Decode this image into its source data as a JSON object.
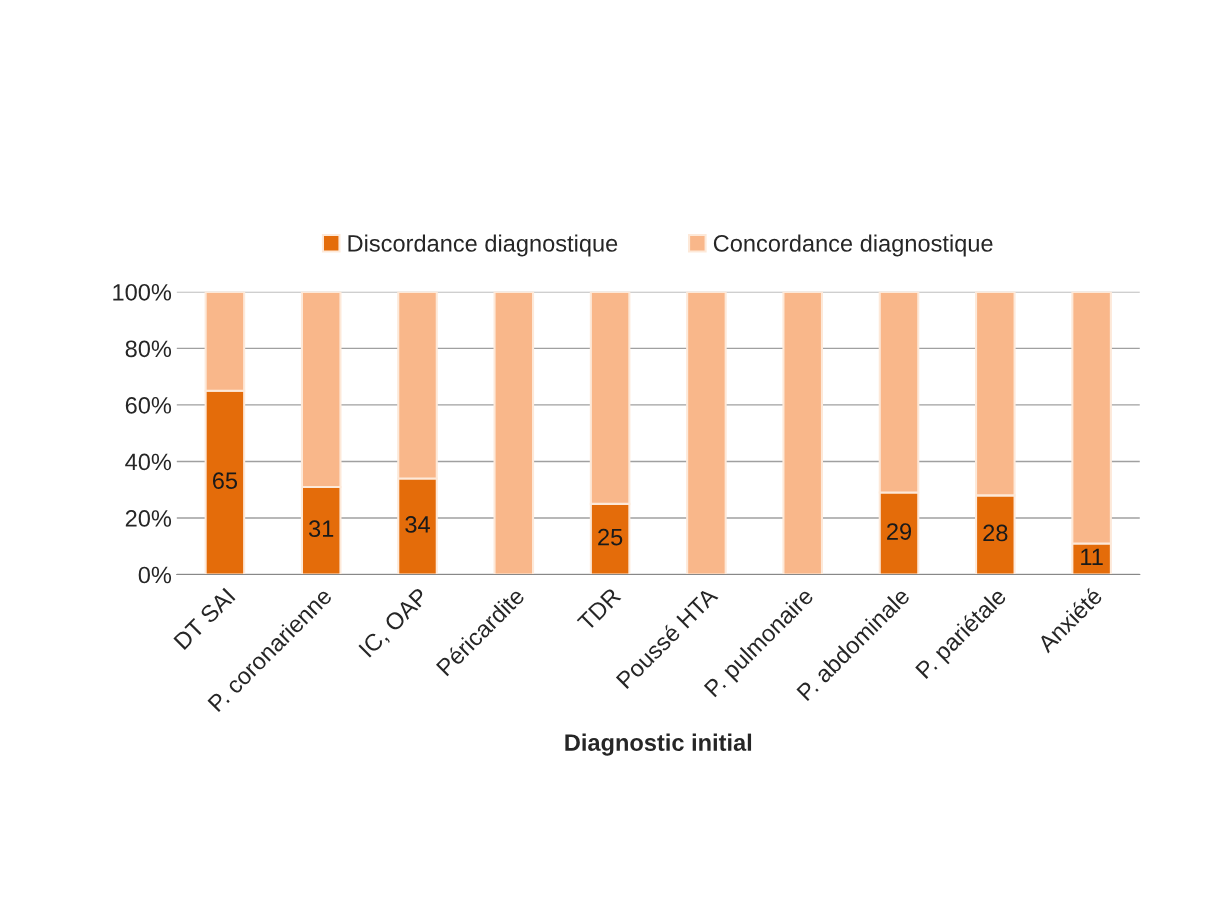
{
  "chart_data": {
    "type": "bar",
    "stacked": true,
    "xlabel": "Diagnostic initial",
    "categories": [
      "DT SAI",
      "P. coronarienne",
      "IC, OAP",
      "Péricardite",
      "TDR",
      "Poussé HTA",
      "P. pulmonaire",
      "P. abdominale",
      "P. pariétale",
      "Anxiété"
    ],
    "series": [
      {
        "name": "Discordance diagnostique",
        "color": "#e46c0a",
        "values": [
          65,
          31,
          34,
          0,
          25,
          0,
          0,
          29,
          28,
          11
        ],
        "value_labels": [
          "65",
          "31",
          "34",
          null,
          "25",
          null,
          null,
          "29",
          "28",
          "11"
        ]
      },
      {
        "name": "Concordance diagnostique",
        "color": "#f9b78a",
        "values": [
          35,
          69,
          66,
          100,
          75,
          100,
          100,
          71,
          72,
          89
        ]
      }
    ],
    "ylim": [
      0,
      100
    ],
    "yticks": [
      {
        "value": 0,
        "label": "0%"
      },
      {
        "value": 20,
        "label": "20%"
      },
      {
        "value": 40,
        "label": "40%"
      },
      {
        "value": 60,
        "label": "60%"
      },
      {
        "value": 80,
        "label": "80%"
      },
      {
        "value": 100,
        "label": "100%"
      }
    ],
    "grid": "y",
    "legend": "top"
  }
}
